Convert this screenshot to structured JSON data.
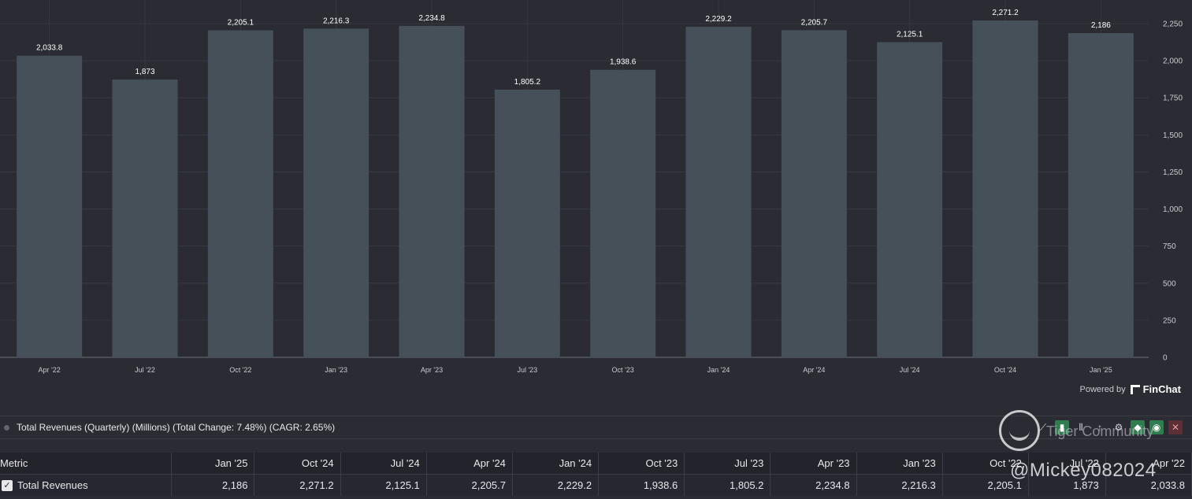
{
  "chart_data": {
    "type": "bar",
    "categories": [
      "Apr '22",
      "Jul '22",
      "Oct '22",
      "Jan '23",
      "Apr '23",
      "Jul '23",
      "Oct '23",
      "Jan '24",
      "Apr '24",
      "Jul '24",
      "Oct '24",
      "Jan '25"
    ],
    "values": [
      2033.8,
      1873,
      2205.1,
      2216.3,
      2234.8,
      1805.2,
      1938.6,
      2229.2,
      2205.7,
      2125.1,
      2271.2,
      2186
    ],
    "value_labels": [
      "2,033.8",
      "1,873",
      "2,205.1",
      "2,216.3",
      "2,234.8",
      "1,805.2",
      "1,938.6",
      "2,229.2",
      "2,205.7",
      "2,125.1",
      "2,271.2",
      "2,186"
    ],
    "ylim": [
      0,
      2250
    ],
    "yticks": [
      "0",
      "250",
      "500",
      "750",
      "1,000",
      "1,250",
      "1,500",
      "1,750",
      "2,000",
      "2,250"
    ],
    "y_axis_position": "right",
    "grid": true,
    "bar_color": "#465058",
    "title": "",
    "xlabel": "",
    "ylabel": ""
  },
  "powered_by": {
    "label": "Powered by",
    "brand": "FinChat"
  },
  "summary": {
    "text": "Total Revenues (Quarterly) (Millions) (Total Change: 7.48%) (CAGR: 2.65%)"
  },
  "toolbar": {
    "icons": [
      "line-chart-icon",
      "bar-chart-icon",
      "stacked-bar-icon",
      "sort-icon",
      "gear-icon",
      "tag-icon",
      "eye-icon",
      "close-icon"
    ]
  },
  "watermark": {
    "text": "Tiger Community",
    "handle": "@Mickey082024"
  },
  "table": {
    "header": [
      "Metric",
      "Jan '25",
      "Oct '24",
      "Jul '24",
      "Apr '24",
      "Jan '24",
      "Oct '23",
      "Jul '23",
      "Apr '23",
      "Jan '23",
      "Oct '22",
      "Jul '22",
      "Apr '22"
    ],
    "rows": [
      {
        "label": "Total Revenues",
        "values": [
          "2,186",
          "2,271.2",
          "2,125.1",
          "2,205.7",
          "2,229.2",
          "1,938.6",
          "1,805.2",
          "2,234.8",
          "2,216.3",
          "2,205.1",
          "1,873",
          "2,033.8"
        ]
      }
    ]
  },
  "colors": {
    "background": "#2a2b33",
    "bar": "#465058",
    "accent_green": "#2f7d4f"
  }
}
